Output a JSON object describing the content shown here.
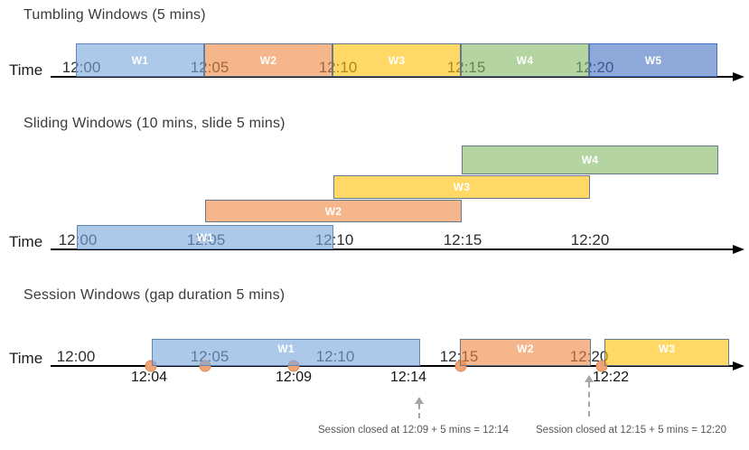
{
  "figure": {
    "diagrams": [
      {
        "id": "tumbling",
        "title": "Tumbling Windows (5 mins)",
        "axis_label": "Time",
        "ticks": [
          "12:00",
          "12:05",
          "12:10",
          "12:15",
          "12:20"
        ],
        "windows": [
          {
            "label": "W1",
            "color": "blue"
          },
          {
            "label": "W2",
            "color": "orange"
          },
          {
            "label": "W3",
            "color": "yellow"
          },
          {
            "label": "W4",
            "color": "green"
          },
          {
            "label": "W5",
            "color": "periwinkle"
          }
        ]
      },
      {
        "id": "sliding",
        "title": "Sliding Windows (10 mins, slide 5 mins)",
        "axis_label": "Time",
        "ticks": [
          "12:00",
          "12:05",
          "12:10",
          "12:15",
          "12:20"
        ],
        "windows": [
          {
            "label": "W1",
            "color": "blue"
          },
          {
            "label": "W2",
            "color": "orange"
          },
          {
            "label": "W3",
            "color": "yellow"
          },
          {
            "label": "W4",
            "color": "green"
          }
        ]
      },
      {
        "id": "session",
        "title": "Session Windows (gap duration 5 mins)",
        "axis_label": "Time",
        "ticks": [
          "12:00",
          "12:05",
          "12:10",
          "12:15",
          "12:20"
        ],
        "windows": [
          {
            "label": "W1",
            "color": "blue"
          },
          {
            "label": "W2",
            "color": "orange"
          },
          {
            "label": "W3",
            "color": "yellow"
          }
        ],
        "event_time_labels": [
          "12:04",
          "12:09",
          "12:14",
          "12:22"
        ],
        "annotations": [
          "Session closed at 12:09 + 5 mins = 12:14",
          "Session closed at 12:15 + 5 mins = 12:20"
        ]
      }
    ]
  },
  "colors": {
    "blue": {
      "fill": "rgba(122,168,221,0.62)",
      "border": "#6286B5"
    },
    "orange": {
      "fill": "rgba(237,137,66,0.62)",
      "border": "#66788E"
    },
    "yellow": {
      "fill": "rgba(255,192,7,0.62)",
      "border": "#66788E"
    },
    "green": {
      "fill": "rgba(134,185,104,0.62)",
      "border": "#66788E"
    },
    "periwinkle": {
      "fill": "rgba(72,114,193,0.62)",
      "border": "#4472C4"
    },
    "event_dot": {
      "fill": "#F2A376",
      "border": "#DF8A55"
    },
    "timeline": "#000000",
    "annotation_text": "#585858"
  }
}
